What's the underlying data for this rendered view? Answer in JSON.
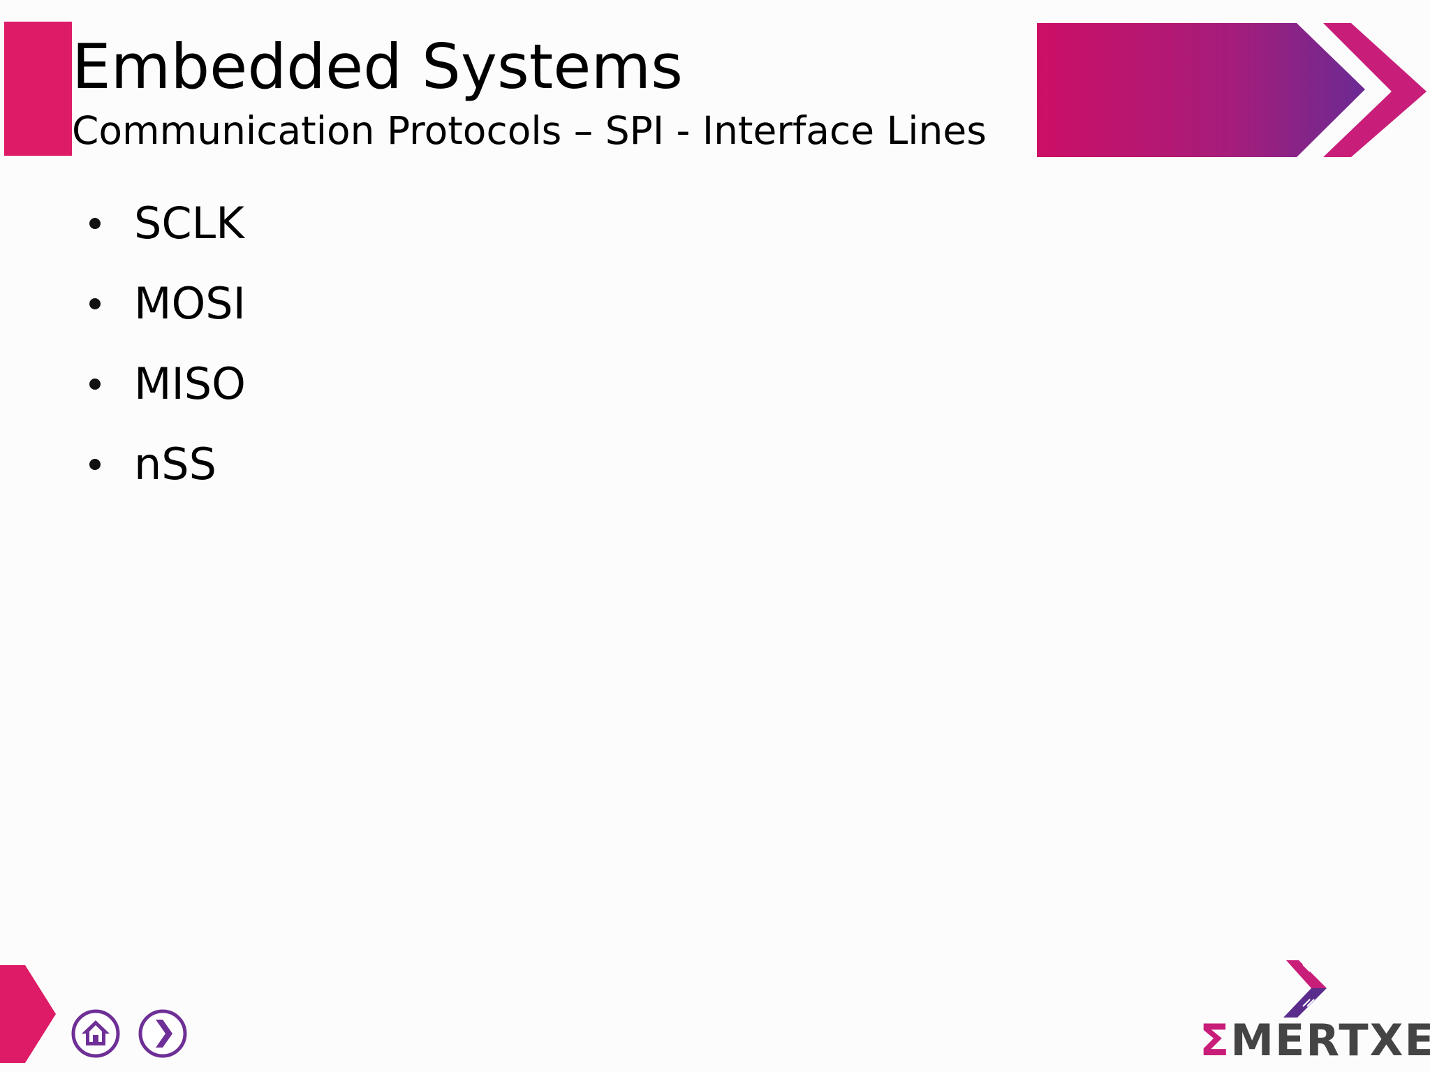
{
  "slide": {
    "title": "Embedded Systems",
    "subtitle": "Communication Protocols – SPI - Interface Lines",
    "bullets": [
      "SCLK",
      "MOSI",
      "MISO",
      "nSS"
    ]
  },
  "navigation": {
    "home_icon": "home-icon",
    "next_icon": "chevron-right-icon"
  },
  "logo": {
    "sigma": "Σ",
    "text": "MERTXE"
  },
  "colors": {
    "accent_pink": "#de1b66",
    "banner_start": "#cc0f66",
    "banner_end": "#6b2a94",
    "nav_purple": "#6e2f96"
  }
}
